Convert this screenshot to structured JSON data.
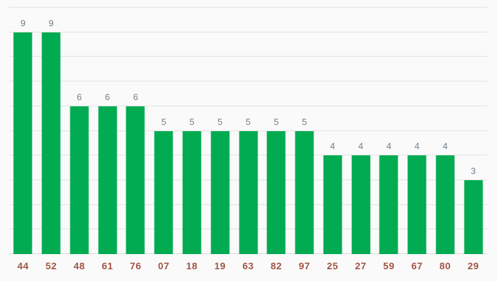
{
  "chart_data": {
    "type": "bar",
    "categories": [
      "44",
      "52",
      "48",
      "61",
      "76",
      "07",
      "18",
      "19",
      "63",
      "82",
      "97",
      "25",
      "27",
      "59",
      "67",
      "80",
      "29"
    ],
    "values": [
      9,
      9,
      6,
      6,
      6,
      5,
      5,
      5,
      5,
      5,
      5,
      4,
      4,
      4,
      4,
      4,
      3
    ],
    "ylim": [
      0,
      10
    ],
    "gridline_step": 1,
    "grid": true,
    "legend_position": "none",
    "show_value_labels": true,
    "colors": {
      "background": "#fafafa",
      "bar": "#00ab51",
      "value_label": "#6e808f",
      "category_label": "#a05546",
      "gridline": "#e2e2e2",
      "axis_line": "#d8d8d8"
    }
  }
}
